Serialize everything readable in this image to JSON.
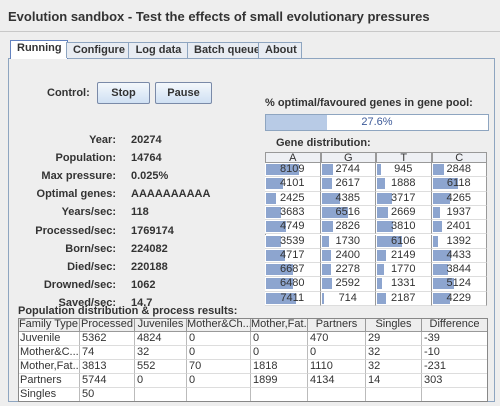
{
  "header": {
    "title": "Evolution sandbox - Test the effects of small evolutionary pressures"
  },
  "tabs": [
    "Running",
    "Configure",
    "Log data",
    "Batch queue",
    "About"
  ],
  "control": {
    "label": "Control:",
    "buttons": [
      "Stop",
      "Pause"
    ]
  },
  "stats": [
    {
      "label": "Year:",
      "value": "20274"
    },
    {
      "label": "Population:",
      "value": "14764"
    },
    {
      "label": "Max pressure:",
      "value": "0.025%"
    },
    {
      "label": "Optimal genes:",
      "value": "AAAAAAAAAA"
    },
    {
      "label": "Years/sec:",
      "value": "118"
    },
    {
      "label": "Processed/sec:",
      "value": "1769174"
    },
    {
      "label": "Born/sec:",
      "value": "224082"
    },
    {
      "label": "Died/sec:",
      "value": "220188"
    },
    {
      "label": "Drowned/sec:",
      "value": "1062"
    },
    {
      "label": "Saved/sec:",
      "value": "14.7"
    }
  ],
  "optimal": {
    "title": "% optimal/favoured genes in gene pool:",
    "progress": {
      "value": 27.6,
      "label": "27.6%"
    }
  },
  "genes": {
    "title": "Gene distribution:",
    "columns": [
      "A",
      "G",
      "T",
      "C"
    ],
    "rows": [
      [
        8109,
        2744,
        945,
        2848
      ],
      [
        4101,
        2617,
        1888,
        6118
      ],
      [
        2425,
        4385,
        3717,
        4265
      ],
      [
        3683,
        6516,
        2669,
        1937
      ],
      [
        4749,
        2826,
        3810,
        2401
      ],
      [
        3539,
        1730,
        6106,
        1392
      ],
      [
        4717,
        2400,
        2149,
        4433
      ],
      [
        6687,
        2278,
        1770,
        3844
      ],
      [
        6480,
        2592,
        1331,
        5124
      ],
      [
        7411,
        714,
        2187,
        4229
      ]
    ]
  },
  "table": {
    "title": "Population distribution & process results:",
    "columns": [
      "Family Type",
      "Processed",
      "Juveniles",
      "Mother&Ch...",
      "Mother,Fat...",
      "Partners",
      "Singles",
      "Difference"
    ],
    "rows": [
      [
        "Juvenile",
        5362,
        4824,
        0,
        0,
        470,
        29,
        -39
      ],
      [
        "Mother&C...",
        74,
        32,
        0,
        0,
        0,
        32,
        -10
      ],
      [
        "Mother,Fat...",
        3813,
        552,
        70,
        1818,
        1110,
        32,
        -231
      ],
      [
        "Partners",
        5744,
        0,
        0,
        1899,
        4134,
        14,
        303
      ],
      [
        "Singles",
        50
      ]
    ]
  }
}
